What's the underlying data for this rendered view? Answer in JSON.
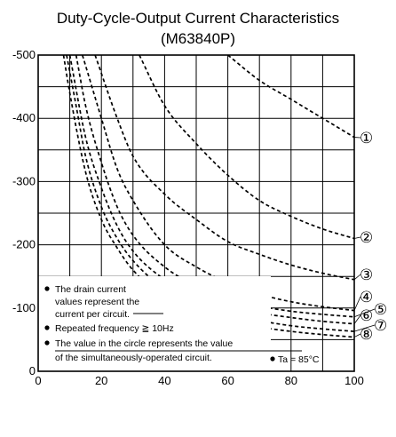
{
  "chart_data": {
    "type": "line",
    "title": "Duty-Cycle-Output Current Characteristics",
    "subtitle": "(M63840P)",
    "xlabel": "",
    "ylabel": "",
    "xlim": [
      0,
      100
    ],
    "ylim": [
      0,
      -500
    ],
    "x_ticks": [
      "0",
      "20",
      "40",
      "60",
      "80",
      "100"
    ],
    "y_ticks": [
      "0",
      "-100",
      "-200",
      "-300",
      "-400",
      "-500"
    ],
    "grid": true,
    "series": [
      {
        "name": "①",
        "points": [
          [
            60,
            -500
          ],
          [
            70,
            -460
          ],
          [
            80,
            -430
          ],
          [
            90,
            -400
          ],
          [
            100,
            -370
          ]
        ]
      },
      {
        "name": "②",
        "points": [
          [
            32,
            -500
          ],
          [
            40,
            -420
          ],
          [
            50,
            -360
          ],
          [
            60,
            -310
          ],
          [
            70,
            -270
          ],
          [
            80,
            -245
          ],
          [
            90,
            -225
          ],
          [
            100,
            -210
          ]
        ]
      },
      {
        "name": "③",
        "points": [
          [
            18,
            -500
          ],
          [
            25,
            -400
          ],
          [
            30,
            -340
          ],
          [
            40,
            -280
          ],
          [
            50,
            -240
          ],
          [
            60,
            -205
          ],
          [
            70,
            -185
          ],
          [
            80,
            -168
          ],
          [
            90,
            -155
          ],
          [
            100,
            -145
          ]
        ]
      },
      {
        "name": "④",
        "points": [
          [
            14,
            -500
          ],
          [
            20,
            -400
          ],
          [
            25,
            -320
          ],
          [
            30,
            -270
          ],
          [
            40,
            -200
          ],
          [
            50,
            -165
          ],
          [
            60,
            -140
          ],
          [
            70,
            -122
          ],
          [
            80,
            -110
          ],
          [
            90,
            -102
          ],
          [
            100,
            -96
          ]
        ]
      },
      {
        "name": "⑤",
        "points": [
          [
            12,
            -500
          ],
          [
            15,
            -420
          ],
          [
            20,
            -330
          ],
          [
            25,
            -260
          ],
          [
            30,
            -215
          ],
          [
            40,
            -165
          ],
          [
            50,
            -135
          ],
          [
            60,
            -115
          ],
          [
            70,
            -103
          ],
          [
            80,
            -95
          ],
          [
            90,
            -90
          ],
          [
            100,
            -86
          ]
        ]
      },
      {
        "name": "⑥",
        "points": [
          [
            10,
            -500
          ],
          [
            15,
            -370
          ],
          [
            20,
            -290
          ],
          [
            25,
            -230
          ],
          [
            30,
            -190
          ],
          [
            40,
            -145
          ],
          [
            50,
            -118
          ],
          [
            60,
            -102
          ],
          [
            70,
            -92
          ],
          [
            80,
            -85
          ],
          [
            90,
            -79
          ],
          [
            100,
            -75
          ]
        ]
      },
      {
        "name": "⑦",
        "points": [
          [
            9,
            -500
          ],
          [
            12,
            -420
          ],
          [
            15,
            -340
          ],
          [
            20,
            -260
          ],
          [
            25,
            -210
          ],
          [
            30,
            -175
          ],
          [
            40,
            -130
          ],
          [
            50,
            -105
          ],
          [
            60,
            -90
          ],
          [
            70,
            -80
          ],
          [
            80,
            -72
          ],
          [
            90,
            -67
          ],
          [
            100,
            -63
          ]
        ]
      },
      {
        "name": "⑧",
        "points": [
          [
            8,
            -500
          ],
          [
            10,
            -440
          ],
          [
            15,
            -315
          ],
          [
            20,
            -240
          ],
          [
            25,
            -195
          ],
          [
            30,
            -160
          ],
          [
            40,
            -118
          ],
          [
            50,
            -95
          ],
          [
            60,
            -80
          ],
          [
            70,
            -70
          ],
          [
            80,
            -63
          ],
          [
            90,
            -58
          ],
          [
            100,
            -54
          ]
        ]
      }
    ],
    "annotations": [
      "The drain current",
      "values represent the",
      "current per circuit.",
      "Repeated frequency ≧ 10Hz",
      "The value in the circle represents the value",
      "of the simultaneously-operated circuit.",
      "Ta = 85°C"
    ]
  }
}
